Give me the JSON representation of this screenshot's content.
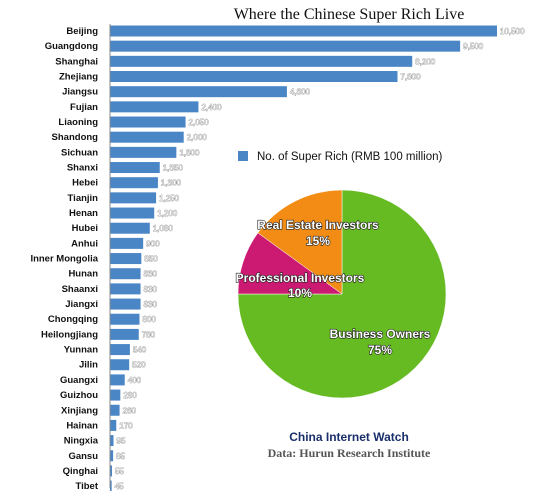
{
  "chart_data": [
    {
      "type": "bar",
      "orientation": "horizontal",
      "title": "Where the Chinese Super Rich Live",
      "categories": [
        "Beijing",
        "Guangdong",
        "Shanghai",
        "Zhejiang",
        "Jiangsu",
        "Fujian",
        "Liaoning",
        "Shandong",
        "Sichuan",
        "Shanxi",
        "Hebei",
        "Tianjin",
        "Henan",
        "Hubei",
        "Anhui",
        "Inner Mongolia",
        "Hunan",
        "Shaanxi",
        "Jiangxi",
        "Chongqing",
        "Heilongjiang",
        "Yunnan",
        "Jilin",
        "Guangxi",
        "Guizhou",
        "Xinjiang",
        "Hainan",
        "Ningxia",
        "Gansu",
        "Qinghai",
        "Tibet"
      ],
      "values": [
        10500,
        9500,
        8200,
        7800,
        4800,
        2400,
        2050,
        2000,
        1800,
        1350,
        1300,
        1250,
        1200,
        1080,
        900,
        850,
        830,
        830,
        830,
        800,
        780,
        540,
        520,
        400,
        280,
        260,
        170,
        95,
        85,
        55,
        45
      ],
      "value_labels": [
        "10,500",
        "9,500",
        "8,200",
        "7,800",
        "4,800",
        "2,400",
        "2,050",
        "2,000",
        "1,800",
        "1,350",
        "1,300",
        "1,250",
        "1,200",
        "1,080",
        "900",
        "850",
        "830",
        "830",
        "830",
        "800",
        "780",
        "540",
        "520",
        "400",
        "280",
        "260",
        "170",
        "95",
        "85",
        "55",
        "45"
      ],
      "series": [
        {
          "name": "No. of Super Rich (RMB 100 million)"
        }
      ],
      "xlim": [
        0,
        10500
      ],
      "grid": false,
      "legend": "right",
      "colors": {
        "bar": "#4a86c6"
      }
    },
    {
      "type": "pie",
      "slices": [
        {
          "label": "Business Owners",
          "value": 75,
          "pct_label": "75%",
          "color": "#66bb22"
        },
        {
          "label": "Professional Investors",
          "value": 10,
          "pct_label": "10%",
          "color": "#cc1a73"
        },
        {
          "label": "Real Estate Investors",
          "value": 15,
          "pct_label": "15%",
          "color": "#f28c14"
        }
      ]
    }
  ],
  "credits": {
    "source_brand": "China Internet Watch",
    "data_source": "Data: Hurun Research Institute"
  }
}
